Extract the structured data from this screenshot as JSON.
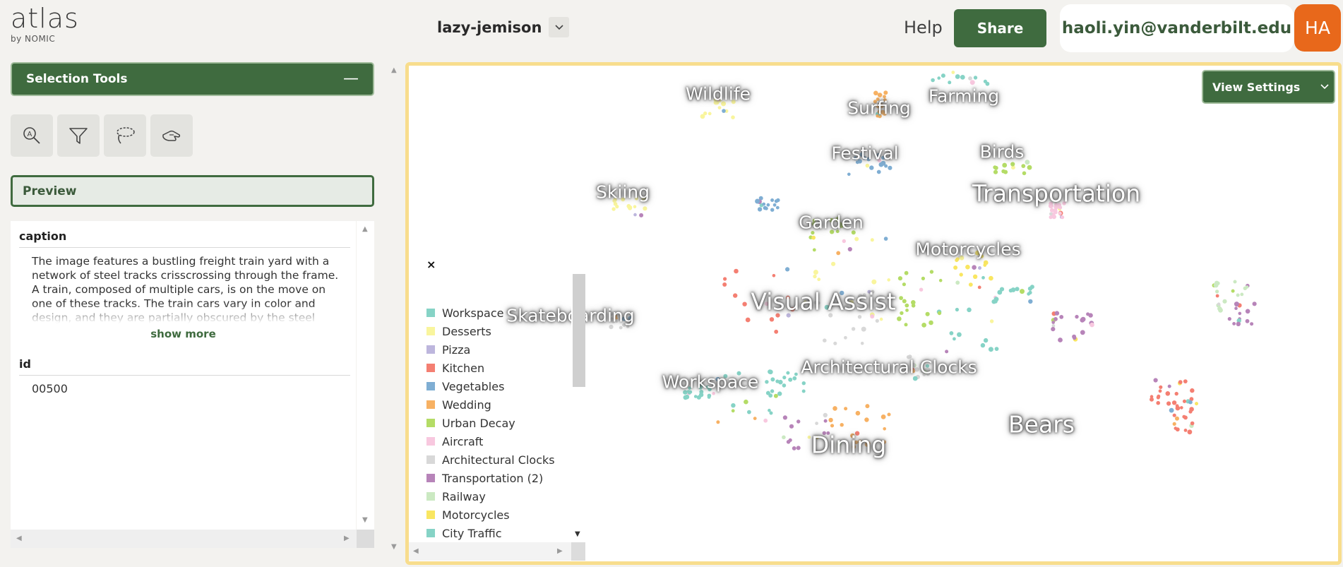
{
  "header": {
    "logo_text": "atlas",
    "logo_sub": "by NOMIC",
    "project_name": "lazy-jemison",
    "help_label": "Help",
    "share_label": "Share",
    "user_email": "haoli.yin@vanderbilt.edu",
    "avatar_initials": "HA"
  },
  "sidebar": {
    "selection_tools_title": "Selection Tools",
    "collapse_symbol": "—",
    "tools": [
      {
        "name": "lasso-search-icon"
      },
      {
        "name": "filter-icon"
      },
      {
        "name": "lasso-icon"
      },
      {
        "name": "hand-select-icon"
      }
    ],
    "preview_label": "Preview",
    "fields": {
      "caption_label": "caption",
      "caption_value": "The image features a bustling freight train yard with a network of steel tracks crisscrossing through the frame. A train, composed of multiple cars, is on the move on one of these tracks. The train cars vary in color and design, and they are partially obscured by the steel structure...",
      "show_more_label": "show more",
      "id_label": "id",
      "id_value": "00500"
    }
  },
  "map": {
    "view_settings_label": "View Settings",
    "legend_close": "×",
    "legend": [
      {
        "label": "Workspace",
        "color": "#86d3c6"
      },
      {
        "label": "Desserts",
        "color": "#f9f59d"
      },
      {
        "label": "Pizza",
        "color": "#bdb6dd"
      },
      {
        "label": "Kitchen",
        "color": "#f47f72"
      },
      {
        "label": "Vegetables",
        "color": "#7faed3"
      },
      {
        "label": "Wedding",
        "color": "#f7b163"
      },
      {
        "label": "Urban Decay",
        "color": "#b4dc66"
      },
      {
        "label": "Aircraft",
        "color": "#f8c8df"
      },
      {
        "label": "Architectural Clocks",
        "color": "#d8d8d8"
      },
      {
        "label": "Transportation (2)",
        "color": "#b784b9"
      },
      {
        "label": "Railway",
        "color": "#cbe9c2"
      },
      {
        "label": "Motorcycles",
        "color": "#f9e661"
      },
      {
        "label": "City Traffic",
        "color": "#86d3c6"
      }
    ],
    "topics": [
      {
        "label": "Wildlife",
        "size": 25
      },
      {
        "label": "Surfing",
        "size": 25
      },
      {
        "label": "Farming",
        "size": 25
      },
      {
        "label": "Festival",
        "size": 25
      },
      {
        "label": "Birds",
        "size": 25
      },
      {
        "label": "Skiing",
        "size": 25
      },
      {
        "label": "Transportation",
        "size": 33
      },
      {
        "label": "Garden",
        "size": 25
      },
      {
        "label": "Motorcycles",
        "size": 25
      },
      {
        "label": "Visual Assist",
        "size": 33
      },
      {
        "label": "Skateboarding",
        "size": 25
      },
      {
        "label": "Architectural Clocks",
        "size": 25
      },
      {
        "label": "Workspace",
        "size": 25
      },
      {
        "label": "Bears",
        "size": 33
      },
      {
        "label": "Dining",
        "size": 33
      }
    ]
  }
}
